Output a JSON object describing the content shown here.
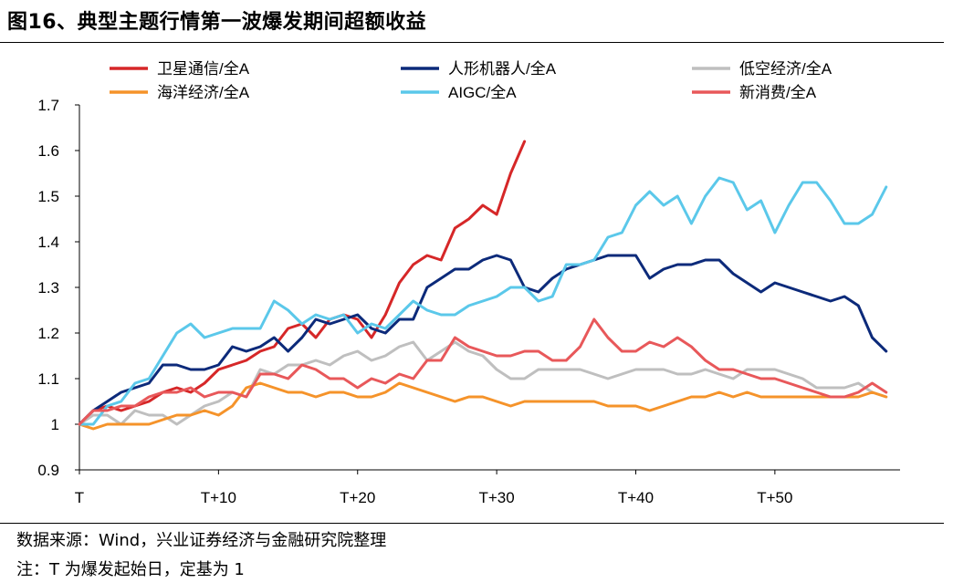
{
  "title": "图16、典型主题行情第一波爆发期间超额收益",
  "source": "数据来源：Wind，兴业证券经济与金融研究院整理",
  "note": "注：T 为爆发起始日，定基为 1",
  "chart_data": {
    "type": "line",
    "title": "图16、典型主题行情第一波爆发期间超额收益",
    "xlabel": "",
    "ylabel": "",
    "x_tick_labels": [
      "T",
      "T+10",
      "T+20",
      "T+30",
      "T+40",
      "T+50"
    ],
    "x_tick_values": [
      0,
      10,
      20,
      30,
      40,
      50
    ],
    "xlim": [
      0,
      59
    ],
    "ylim": [
      0.9,
      1.7
    ],
    "y_ticks": [
      0.9,
      1,
      1.1,
      1.2,
      1.3,
      1.4,
      1.5,
      1.6,
      1.7
    ],
    "y_tick_labels": [
      "0.9",
      "1",
      "1.1",
      "1.2",
      "1.3",
      "1.4",
      "1.5",
      "1.6",
      "1.7"
    ],
    "grid": false,
    "legend_position": "top",
    "series": [
      {
        "name": "卫星通信/全A",
        "color": "#d62728",
        "values": [
          1.0,
          1.03,
          1.04,
          1.03,
          1.04,
          1.05,
          1.07,
          1.08,
          1.07,
          1.09,
          1.12,
          1.13,
          1.14,
          1.16,
          1.17,
          1.21,
          1.22,
          1.19,
          1.23,
          1.24,
          1.23,
          1.19,
          1.24,
          1.31,
          1.35,
          1.37,
          1.36,
          1.43,
          1.45,
          1.48,
          1.46,
          1.55,
          1.62
        ]
      },
      {
        "name": "人形机器人/全A",
        "color": "#0c2a7a",
        "values": [
          1.0,
          1.03,
          1.05,
          1.07,
          1.08,
          1.09,
          1.13,
          1.13,
          1.12,
          1.12,
          1.13,
          1.17,
          1.16,
          1.17,
          1.19,
          1.16,
          1.19,
          1.23,
          1.22,
          1.23,
          1.24,
          1.21,
          1.2,
          1.23,
          1.23,
          1.3,
          1.32,
          1.34,
          1.34,
          1.36,
          1.37,
          1.36,
          1.3,
          1.29,
          1.32,
          1.34,
          1.35,
          1.36,
          1.37,
          1.37,
          1.37,
          1.32,
          1.34,
          1.35,
          1.35,
          1.36,
          1.36,
          1.33,
          1.31,
          1.29,
          1.31,
          1.3,
          1.29,
          1.28,
          1.27,
          1.28,
          1.26,
          1.19,
          1.16
        ]
      },
      {
        "name": "低空经济/全A",
        "color": "#bfbfbf",
        "values": [
          1.0,
          1.02,
          1.02,
          1.0,
          1.03,
          1.02,
          1.02,
          1.0,
          1.02,
          1.04,
          1.05,
          1.07,
          1.06,
          1.12,
          1.11,
          1.13,
          1.13,
          1.14,
          1.13,
          1.15,
          1.16,
          1.14,
          1.15,
          1.17,
          1.18,
          1.14,
          1.16,
          1.18,
          1.16,
          1.15,
          1.12,
          1.1,
          1.1,
          1.12,
          1.12,
          1.12,
          1.12,
          1.11,
          1.1,
          1.11,
          1.12,
          1.12,
          1.12,
          1.11,
          1.11,
          1.12,
          1.11,
          1.1,
          1.12,
          1.12,
          1.12,
          1.11,
          1.1,
          1.08,
          1.08,
          1.08,
          1.09,
          1.07,
          1.06
        ]
      },
      {
        "name": "海洋经济/全A",
        "color": "#f5932a",
        "values": [
          1.0,
          0.99,
          1.0,
          1.0,
          1.0,
          1.0,
          1.01,
          1.02,
          1.02,
          1.03,
          1.02,
          1.04,
          1.08,
          1.09,
          1.08,
          1.07,
          1.07,
          1.06,
          1.07,
          1.07,
          1.06,
          1.06,
          1.07,
          1.09,
          1.08,
          1.07,
          1.06,
          1.05,
          1.06,
          1.06,
          1.05,
          1.04,
          1.05,
          1.05,
          1.05,
          1.05,
          1.05,
          1.05,
          1.04,
          1.04,
          1.04,
          1.03,
          1.04,
          1.05,
          1.06,
          1.06,
          1.07,
          1.06,
          1.07,
          1.06,
          1.06,
          1.06,
          1.06,
          1.06,
          1.06,
          1.06,
          1.06,
          1.07,
          1.06
        ]
      },
      {
        "name": "AIGC/全A",
        "color": "#5bc8ea",
        "values": [
          1.0,
          1.0,
          1.04,
          1.05,
          1.09,
          1.1,
          1.15,
          1.2,
          1.22,
          1.19,
          1.2,
          1.21,
          1.21,
          1.21,
          1.27,
          1.25,
          1.22,
          1.24,
          1.23,
          1.24,
          1.2,
          1.22,
          1.21,
          1.24,
          1.27,
          1.25,
          1.24,
          1.24,
          1.26,
          1.27,
          1.28,
          1.3,
          1.3,
          1.27,
          1.28,
          1.35,
          1.35,
          1.36,
          1.41,
          1.42,
          1.48,
          1.51,
          1.48,
          1.5,
          1.44,
          1.5,
          1.54,
          1.53,
          1.47,
          1.49,
          1.42,
          1.48,
          1.53,
          1.53,
          1.49,
          1.44,
          1.44,
          1.46,
          1.52
        ]
      },
      {
        "name": "新消费/全A",
        "color": "#e8585a",
        "values": [
          1.0,
          1.03,
          1.03,
          1.04,
          1.04,
          1.06,
          1.07,
          1.07,
          1.08,
          1.06,
          1.07,
          1.07,
          1.06,
          1.11,
          1.11,
          1.1,
          1.13,
          1.12,
          1.1,
          1.1,
          1.08,
          1.1,
          1.09,
          1.11,
          1.1,
          1.14,
          1.14,
          1.19,
          1.17,
          1.16,
          1.15,
          1.15,
          1.16,
          1.16,
          1.14,
          1.14,
          1.17,
          1.23,
          1.19,
          1.16,
          1.16,
          1.18,
          1.17,
          1.19,
          1.17,
          1.14,
          1.12,
          1.12,
          1.11,
          1.1,
          1.1,
          1.09,
          1.08,
          1.07,
          1.06,
          1.06,
          1.07,
          1.09,
          1.07
        ]
      }
    ]
  }
}
